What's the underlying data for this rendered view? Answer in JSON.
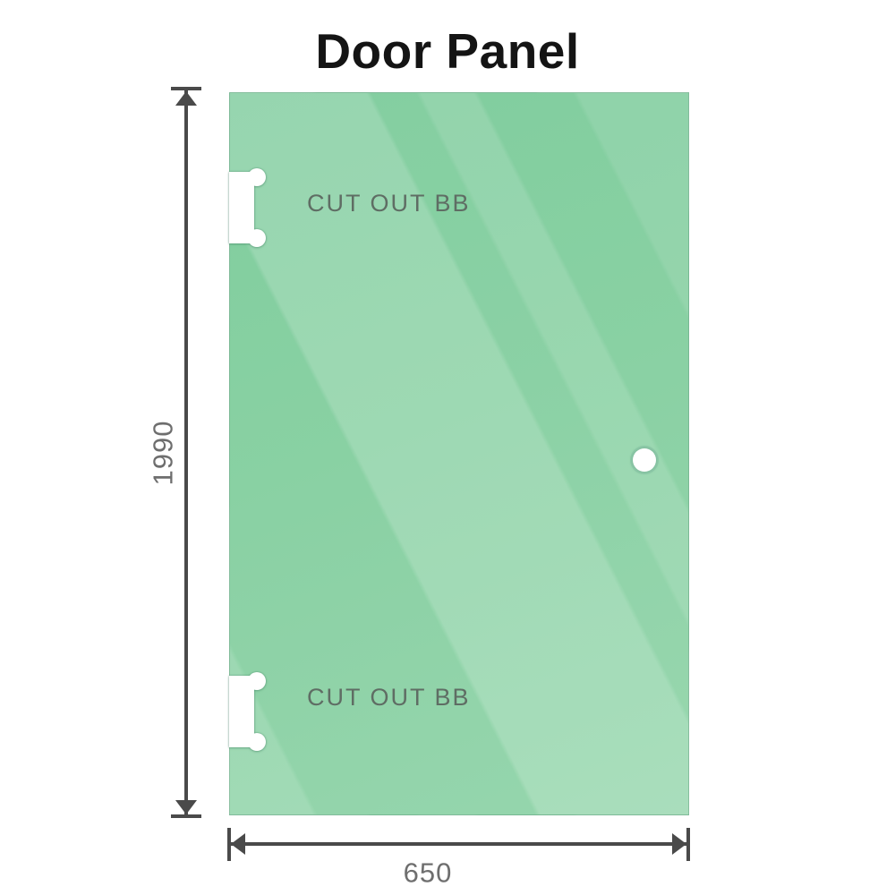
{
  "title": "Door Panel",
  "panel": {
    "glass_color": "#86cfa2",
    "glass_highlight_color": "#a9ddbd",
    "edge_color": "#6fae8e",
    "cutout_top_label": "CUT OUT BB",
    "cutout_bottom_label": "CUT OUT BB"
  },
  "dimensions": {
    "height_value": "1990",
    "width_value": "650",
    "line_color": "#4a4a4a",
    "text_color": "#6e6e6e"
  }
}
